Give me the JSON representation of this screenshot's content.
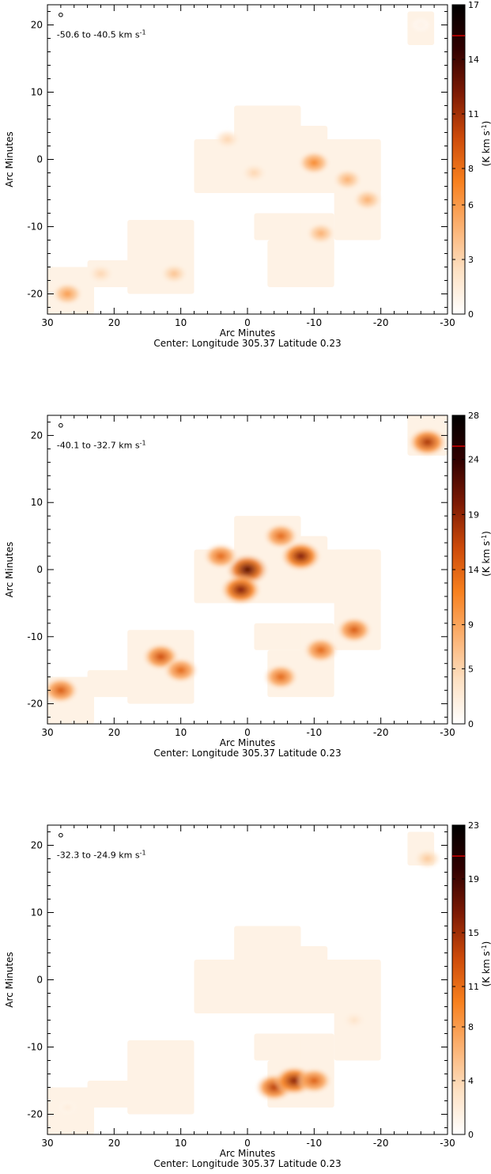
{
  "chart_data": [
    {
      "type": "heatmap",
      "velocity_label": "-50.6 to -40.5 km s",
      "velocity_unit_exponent": "-1",
      "xlabel": "Arc Minutes",
      "ylabel": "Arc Minutes",
      "center_label": "Center:  Longitude 305.37 Latitude 0.23",
      "colorbar_label": "(K km s",
      "colorbar_label_exponent": "-1",
      "colorbar_label_close": ")",
      "xlim": [
        30,
        -30
      ],
      "ylim": [
        -23,
        23
      ],
      "x_ticks": [
        30,
        20,
        10,
        0,
        -10,
        -20,
        -30
      ],
      "y_ticks": [
        -20,
        -10,
        0,
        10,
        20
      ],
      "colorbar_range": [
        0,
        17
      ],
      "colorbar_ticks": [
        0,
        3,
        6,
        8,
        11,
        14,
        17
      ],
      "colormap": [
        "#ffffff",
        "#fde0c2",
        "#fbb070",
        "#f7801e",
        "#cc4a0a",
        "#7d1a04",
        "#300000",
        "#000000"
      ],
      "regions": [
        {
          "x": [
            23,
            30
          ],
          "y": [
            -23,
            -16
          ]
        },
        {
          "x": [
            16,
            24
          ],
          "y": [
            -19,
            -15
          ]
        },
        {
          "x": [
            8,
            18
          ],
          "y": [
            -20,
            -9
          ]
        },
        {
          "x": [
            -20,
            8
          ],
          "y": [
            -5,
            3
          ]
        },
        {
          "x": [
            -8,
            2
          ],
          "y": [
            -3,
            8
          ]
        },
        {
          "x": [
            -12,
            -2
          ],
          "y": [
            -4,
            5
          ]
        },
        {
          "x": [
            -20,
            -13
          ],
          "y": [
            -12,
            3
          ]
        },
        {
          "x": [
            -9,
            -1
          ],
          "y": [
            -12,
            -8
          ]
        },
        {
          "x": [
            -13,
            -8
          ],
          "y": [
            -15,
            -8
          ]
        },
        {
          "x": [
            -13,
            -3
          ],
          "y": [
            -19,
            -12
          ]
        },
        {
          "x": [
            -28,
            -24
          ],
          "y": [
            17,
            22
          ]
        }
      ],
      "emission_peaks": [
        {
          "x": 27,
          "y": -20,
          "value": 6
        },
        {
          "x": 22,
          "y": -17,
          "value": 3
        },
        {
          "x": 11,
          "y": -17,
          "value": 4
        },
        {
          "x": 3,
          "y": 3,
          "value": 3
        },
        {
          "x": -1,
          "y": -2,
          "value": 3
        },
        {
          "x": -10,
          "y": -0.5,
          "value": 7
        },
        {
          "x": -15,
          "y": -3,
          "value": 5
        },
        {
          "x": -18,
          "y": -6,
          "value": 5
        },
        {
          "x": -11,
          "y": -11,
          "value": 5
        },
        {
          "x": -26,
          "y": 20,
          "value": 1
        }
      ]
    },
    {
      "type": "heatmap",
      "velocity_label": "-40.1 to -32.7 km s",
      "velocity_unit_exponent": "-1",
      "xlabel": "Arc Minutes",
      "ylabel": "Arc Minutes",
      "center_label": "Center:  Longitude 305.37 Latitude 0.23",
      "colorbar_label": "(K km s",
      "colorbar_label_exponent": "-1",
      "colorbar_label_close": ")",
      "xlim": [
        30,
        -30
      ],
      "ylim": [
        -23,
        23
      ],
      "x_ticks": [
        30,
        20,
        10,
        0,
        -10,
        -20,
        -30
      ],
      "y_ticks": [
        -20,
        -10,
        0,
        10,
        20
      ],
      "colorbar_range": [
        0,
        28
      ],
      "colorbar_ticks": [
        0,
        5,
        9,
        14,
        19,
        24,
        28
      ],
      "colormap": [
        "#ffffff",
        "#fde0c2",
        "#fbb070",
        "#f7801e",
        "#cc4a0a",
        "#7d1a04",
        "#300000",
        "#000000"
      ],
      "regions": [
        {
          "x": [
            23,
            30
          ],
          "y": [
            -23,
            -16
          ]
        },
        {
          "x": [
            16,
            24
          ],
          "y": [
            -19,
            -15
          ]
        },
        {
          "x": [
            8,
            18
          ],
          "y": [
            -20,
            -9
          ]
        },
        {
          "x": [
            -20,
            8
          ],
          "y": [
            -5,
            3
          ]
        },
        {
          "x": [
            -8,
            2
          ],
          "y": [
            -3,
            8
          ]
        },
        {
          "x": [
            -12,
            -2
          ],
          "y": [
            -4,
            5
          ]
        },
        {
          "x": [
            -20,
            -13
          ],
          "y": [
            -12,
            3
          ]
        },
        {
          "x": [
            -9,
            -1
          ],
          "y": [
            -12,
            -8
          ]
        },
        {
          "x": [
            -13,
            -8
          ],
          "y": [
            -15,
            -8
          ]
        },
        {
          "x": [
            -13,
            -3
          ],
          "y": [
            -19,
            -12
          ]
        },
        {
          "x": [
            -30,
            -24
          ],
          "y": [
            17,
            23
          ]
        }
      ],
      "emission_peaks": [
        {
          "x": 28,
          "y": -18,
          "value": 15
        },
        {
          "x": 13,
          "y": -13,
          "value": 16
        },
        {
          "x": 10,
          "y": -15,
          "value": 14
        },
        {
          "x": 0,
          "y": 0,
          "value": 22
        },
        {
          "x": 1,
          "y": -3,
          "value": 20
        },
        {
          "x": 4,
          "y": 2,
          "value": 14
        },
        {
          "x": -8,
          "y": 2,
          "value": 20
        },
        {
          "x": -5,
          "y": 5,
          "value": 14
        },
        {
          "x": -11,
          "y": -12,
          "value": 14
        },
        {
          "x": -16,
          "y": -9,
          "value": 15
        },
        {
          "x": -5,
          "y": -16,
          "value": 14
        },
        {
          "x": -27,
          "y": 19,
          "value": 18
        }
      ]
    },
    {
      "type": "heatmap",
      "velocity_label": "-32.3 to -24.9 km s",
      "velocity_unit_exponent": "-1",
      "xlabel": "Arc Minutes",
      "ylabel": "Arc Minutes",
      "center_label": "Center:  Longitude 305.37 Latitude 0.23",
      "colorbar_label": "(K km s",
      "colorbar_label_exponent": "-1",
      "colorbar_label_close": ")",
      "xlim": [
        30,
        -30
      ],
      "ylim": [
        -23,
        23
      ],
      "x_ticks": [
        30,
        20,
        10,
        0,
        -10,
        -20,
        -30
      ],
      "y_ticks": [
        -20,
        -10,
        0,
        10,
        20
      ],
      "colorbar_range": [
        0,
        23
      ],
      "colorbar_ticks": [
        0,
        4,
        8,
        11,
        15,
        19,
        23
      ],
      "colormap": [
        "#ffffff",
        "#fde0c2",
        "#fbb070",
        "#f7801e",
        "#cc4a0a",
        "#7d1a04",
        "#300000",
        "#000000"
      ],
      "regions": [
        {
          "x": [
            23,
            30
          ],
          "y": [
            -23,
            -16
          ]
        },
        {
          "x": [
            16,
            24
          ],
          "y": [
            -19,
            -15
          ]
        },
        {
          "x": [
            8,
            18
          ],
          "y": [
            -20,
            -9
          ]
        },
        {
          "x": [
            -20,
            8
          ],
          "y": [
            -5,
            3
          ]
        },
        {
          "x": [
            -8,
            2
          ],
          "y": [
            -3,
            8
          ]
        },
        {
          "x": [
            -12,
            -2
          ],
          "y": [
            -4,
            5
          ]
        },
        {
          "x": [
            -20,
            -13
          ],
          "y": [
            -12,
            3
          ]
        },
        {
          "x": [
            -9,
            -1
          ],
          "y": [
            -12,
            -8
          ]
        },
        {
          "x": [
            -13,
            -8
          ],
          "y": [
            -15,
            -8
          ]
        },
        {
          "x": [
            -13,
            -3
          ],
          "y": [
            -19,
            -12
          ]
        },
        {
          "x": [
            -28,
            -24
          ],
          "y": [
            17,
            22
          ]
        }
      ],
      "emission_peaks": [
        {
          "x": -4,
          "y": -16,
          "value": 14
        },
        {
          "x": -7,
          "y": -15,
          "value": 16
        },
        {
          "x": -10,
          "y": -15,
          "value": 12
        },
        {
          "x": 27,
          "y": -19,
          "value": 2
        },
        {
          "x": -16,
          "y": -6,
          "value": 3
        },
        {
          "x": -27,
          "y": 18,
          "value": 5
        }
      ]
    }
  ]
}
